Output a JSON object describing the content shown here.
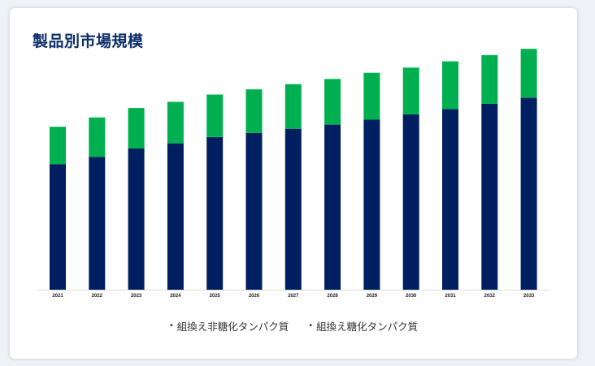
{
  "title": "製品別市場規模",
  "chart_data": {
    "type": "bar",
    "stacked": true,
    "title": "製品別市場規模",
    "categories": [
      "2021",
      "2022",
      "2023",
      "2024",
      "2025",
      "2026",
      "2027",
      "2028",
      "2029",
      "2030",
      "2031",
      "2032",
      "2033"
    ],
    "series": [
      {
        "name": "組換え非糖化タンパク質",
        "color": "#001f60",
        "values": [
          121,
          128,
          136,
          141,
          147,
          151,
          155,
          159,
          164,
          169,
          174,
          179,
          185
        ]
      },
      {
        "name": "組換え糖化タンパク質",
        "color": "#00b050",
        "values": [
          36,
          38,
          39,
          40,
          41,
          42,
          43,
          44,
          45,
          45,
          46,
          47,
          47
        ]
      }
    ],
    "ylim": [
      0,
      240
    ],
    "grid": false,
    "legend_position": "bottom"
  }
}
